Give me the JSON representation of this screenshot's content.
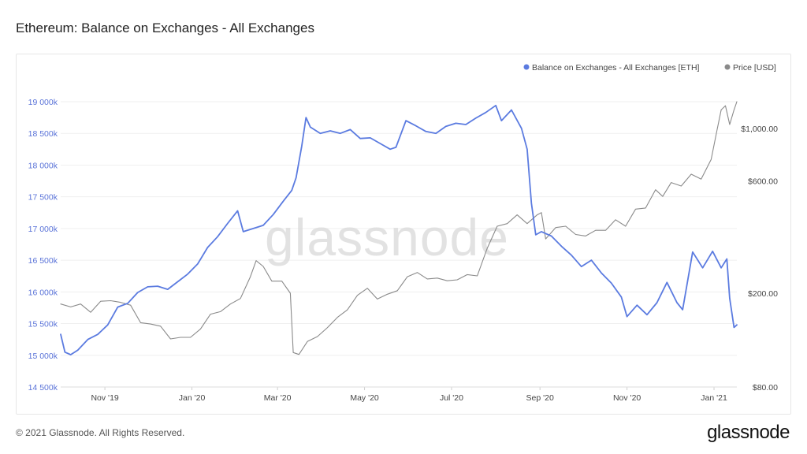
{
  "title": "Ethereum: Balance on Exchanges - All Exchanges",
  "footer": {
    "copyright": "© 2021 Glassnode. All Rights Reserved.",
    "logo": "glassnode"
  },
  "watermark": "glassnode",
  "colors": {
    "balance": "#5b7be0",
    "price": "#8a8a8a",
    "left_axis_text": "#5a73d8",
    "grid": "#efefef"
  },
  "chart_data": {
    "type": "line",
    "title": "Ethereum: Balance on Exchanges - All Exchanges",
    "legend": {
      "position": "top-right",
      "items": [
        {
          "label": "Balance on Exchanges - All Exchanges [ETH]",
          "color": "#5b7be0"
        },
        {
          "label": "Price [USD]",
          "color": "#8a8a8a"
        }
      ]
    },
    "x_ticks": [
      {
        "label": "Nov '19",
        "date": "2019-11-01"
      },
      {
        "label": "Jan '20",
        "date": "2020-01-01"
      },
      {
        "label": "Mar '20",
        "date": "2020-03-01"
      },
      {
        "label": "May '20",
        "date": "2020-05-01"
      },
      {
        "label": "Jul '20",
        "date": "2020-07-01"
      },
      {
        "label": "Sep '20",
        "date": "2020-09-01"
      },
      {
        "label": "Nov '20",
        "date": "2020-11-01"
      },
      {
        "label": "Jan '21",
        "date": "2021-01-01"
      }
    ],
    "xlim": [
      "2019-10-01",
      "2021-01-17"
    ],
    "left_axis": {
      "ticks": [
        "14 500k",
        "15 000k",
        "15 500k",
        "16 000k",
        "16 500k",
        "17 000k",
        "17 500k",
        "18 000k",
        "18 500k",
        "19 000k"
      ],
      "tick_values": [
        14500000,
        15000000,
        15500000,
        16000000,
        16500000,
        17000000,
        17500000,
        18000000,
        18500000,
        19000000
      ],
      "ylim": [
        14500000,
        19000000
      ]
    },
    "right_axis": {
      "scale": "log",
      "ticks": [
        "$80.00",
        "$200.00",
        "$600.00",
        "$1,000.00"
      ],
      "tick_values": [
        80,
        200,
        600,
        1000
      ],
      "ylim": [
        80,
        1300
      ]
    },
    "grid": true,
    "series": [
      {
        "name": "Balance on Exchanges - All Exchanges [ETH]",
        "axis": "left",
        "color": "#5b7be0",
        "points": [
          [
            "2019-10-01",
            15330000
          ],
          [
            "2019-10-04",
            15050000
          ],
          [
            "2019-10-08",
            15010000
          ],
          [
            "2019-10-13",
            15080000
          ],
          [
            "2019-10-20",
            15250000
          ],
          [
            "2019-10-27",
            15330000
          ],
          [
            "2019-11-03",
            15480000
          ],
          [
            "2019-11-10",
            15760000
          ],
          [
            "2019-11-17",
            15820000
          ],
          [
            "2019-11-24",
            15990000
          ],
          [
            "2019-12-01",
            16080000
          ],
          [
            "2019-12-08",
            16090000
          ],
          [
            "2019-12-15",
            16040000
          ],
          [
            "2019-12-22",
            16160000
          ],
          [
            "2019-12-29",
            16280000
          ],
          [
            "2020-01-05",
            16440000
          ],
          [
            "2020-01-12",
            16700000
          ],
          [
            "2020-01-19",
            16870000
          ],
          [
            "2020-01-26",
            17080000
          ],
          [
            "2020-02-02",
            17280000
          ],
          [
            "2020-02-06",
            16950000
          ],
          [
            "2020-02-13",
            17000000
          ],
          [
            "2020-02-20",
            17050000
          ],
          [
            "2020-02-27",
            17220000
          ],
          [
            "2020-03-05",
            17430000
          ],
          [
            "2020-03-11",
            17600000
          ],
          [
            "2020-03-14",
            17800000
          ],
          [
            "2020-03-18",
            18300000
          ],
          [
            "2020-03-21",
            18750000
          ],
          [
            "2020-03-24",
            18600000
          ],
          [
            "2020-03-31",
            18500000
          ],
          [
            "2020-04-07",
            18540000
          ],
          [
            "2020-04-14",
            18500000
          ],
          [
            "2020-04-21",
            18560000
          ],
          [
            "2020-04-28",
            18420000
          ],
          [
            "2020-05-05",
            18430000
          ],
          [
            "2020-05-12",
            18340000
          ],
          [
            "2020-05-19",
            18250000
          ],
          [
            "2020-05-23",
            18280000
          ],
          [
            "2020-05-30",
            18700000
          ],
          [
            "2020-06-06",
            18620000
          ],
          [
            "2020-06-13",
            18530000
          ],
          [
            "2020-06-20",
            18500000
          ],
          [
            "2020-06-27",
            18610000
          ],
          [
            "2020-07-04",
            18660000
          ],
          [
            "2020-07-11",
            18640000
          ],
          [
            "2020-07-18",
            18740000
          ],
          [
            "2020-07-25",
            18830000
          ],
          [
            "2020-08-01",
            18940000
          ],
          [
            "2020-08-05",
            18700000
          ],
          [
            "2020-08-12",
            18870000
          ],
          [
            "2020-08-19",
            18580000
          ],
          [
            "2020-08-23",
            18250000
          ],
          [
            "2020-08-26",
            17400000
          ],
          [
            "2020-08-29",
            16900000
          ],
          [
            "2020-09-02",
            16950000
          ],
          [
            "2020-09-09",
            16880000
          ],
          [
            "2020-09-16",
            16720000
          ],
          [
            "2020-09-23",
            16580000
          ],
          [
            "2020-09-30",
            16400000
          ],
          [
            "2020-10-07",
            16500000
          ],
          [
            "2020-10-14",
            16300000
          ],
          [
            "2020-10-21",
            16140000
          ],
          [
            "2020-10-28",
            15920000
          ],
          [
            "2020-11-01",
            15610000
          ],
          [
            "2020-11-08",
            15790000
          ],
          [
            "2020-11-15",
            15640000
          ],
          [
            "2020-11-22",
            15830000
          ],
          [
            "2020-11-29",
            16150000
          ],
          [
            "2020-12-06",
            15830000
          ],
          [
            "2020-12-10",
            15720000
          ],
          [
            "2020-12-17",
            16630000
          ],
          [
            "2020-12-24",
            16380000
          ],
          [
            "2020-12-31",
            16640000
          ],
          [
            "2021-01-06",
            16380000
          ],
          [
            "2021-01-10",
            16520000
          ],
          [
            "2021-01-12",
            15900000
          ],
          [
            "2021-01-15",
            15440000
          ],
          [
            "2021-01-17",
            15480000
          ]
        ]
      },
      {
        "name": "Price [USD]",
        "axis": "right",
        "color": "#8a8a8a",
        "points": [
          [
            "2019-10-01",
            180
          ],
          [
            "2019-10-08",
            175
          ],
          [
            "2019-10-15",
            180
          ],
          [
            "2019-10-22",
            166
          ],
          [
            "2019-10-29",
            185
          ],
          [
            "2019-11-05",
            186
          ],
          [
            "2019-11-12",
            183
          ],
          [
            "2019-11-19",
            178
          ],
          [
            "2019-11-26",
            150
          ],
          [
            "2019-12-03",
            148
          ],
          [
            "2019-12-10",
            145
          ],
          [
            "2019-12-17",
            128
          ],
          [
            "2019-12-24",
            130
          ],
          [
            "2019-12-31",
            130
          ],
          [
            "2020-01-07",
            141
          ],
          [
            "2020-01-14",
            163
          ],
          [
            "2020-01-21",
            167
          ],
          [
            "2020-01-28",
            180
          ],
          [
            "2020-02-04",
            190
          ],
          [
            "2020-02-11",
            235
          ],
          [
            "2020-02-15",
            275
          ],
          [
            "2020-02-20",
            260
          ],
          [
            "2020-02-26",
            225
          ],
          [
            "2020-03-04",
            225
          ],
          [
            "2020-03-10",
            200
          ],
          [
            "2020-03-12",
            112
          ],
          [
            "2020-03-16",
            110
          ],
          [
            "2020-03-22",
            125
          ],
          [
            "2020-03-29",
            131
          ],
          [
            "2020-04-05",
            143
          ],
          [
            "2020-04-12",
            158
          ],
          [
            "2020-04-19",
            170
          ],
          [
            "2020-04-26",
            196
          ],
          [
            "2020-05-03",
            210
          ],
          [
            "2020-05-10",
            189
          ],
          [
            "2020-05-17",
            198
          ],
          [
            "2020-05-24",
            205
          ],
          [
            "2020-05-31",
            235
          ],
          [
            "2020-06-07",
            245
          ],
          [
            "2020-06-14",
            230
          ],
          [
            "2020-06-21",
            232
          ],
          [
            "2020-06-28",
            226
          ],
          [
            "2020-07-05",
            228
          ],
          [
            "2020-07-12",
            240
          ],
          [
            "2020-07-19",
            237
          ],
          [
            "2020-07-26",
            310
          ],
          [
            "2020-08-02",
            385
          ],
          [
            "2020-08-09",
            395
          ],
          [
            "2020-08-16",
            430
          ],
          [
            "2020-08-23",
            395
          ],
          [
            "2020-08-30",
            430
          ],
          [
            "2020-09-02",
            440
          ],
          [
            "2020-09-05",
            340
          ],
          [
            "2020-09-12",
            380
          ],
          [
            "2020-09-19",
            385
          ],
          [
            "2020-09-26",
            355
          ],
          [
            "2020-10-03",
            350
          ],
          [
            "2020-10-10",
            370
          ],
          [
            "2020-10-17",
            370
          ],
          [
            "2020-10-24",
            410
          ],
          [
            "2020-10-31",
            385
          ],
          [
            "2020-11-07",
            455
          ],
          [
            "2020-11-14",
            460
          ],
          [
            "2020-11-21",
            550
          ],
          [
            "2020-11-26",
            515
          ],
          [
            "2020-12-02",
            590
          ],
          [
            "2020-12-09",
            570
          ],
          [
            "2020-12-16",
            640
          ],
          [
            "2020-12-23",
            610
          ],
          [
            "2020-12-30",
            740
          ],
          [
            "2021-01-03",
            980
          ],
          [
            "2021-01-06",
            1200
          ],
          [
            "2021-01-09",
            1250
          ],
          [
            "2021-01-12",
            1040
          ],
          [
            "2021-01-15",
            1200
          ],
          [
            "2021-01-17",
            1300
          ]
        ]
      }
    ]
  }
}
